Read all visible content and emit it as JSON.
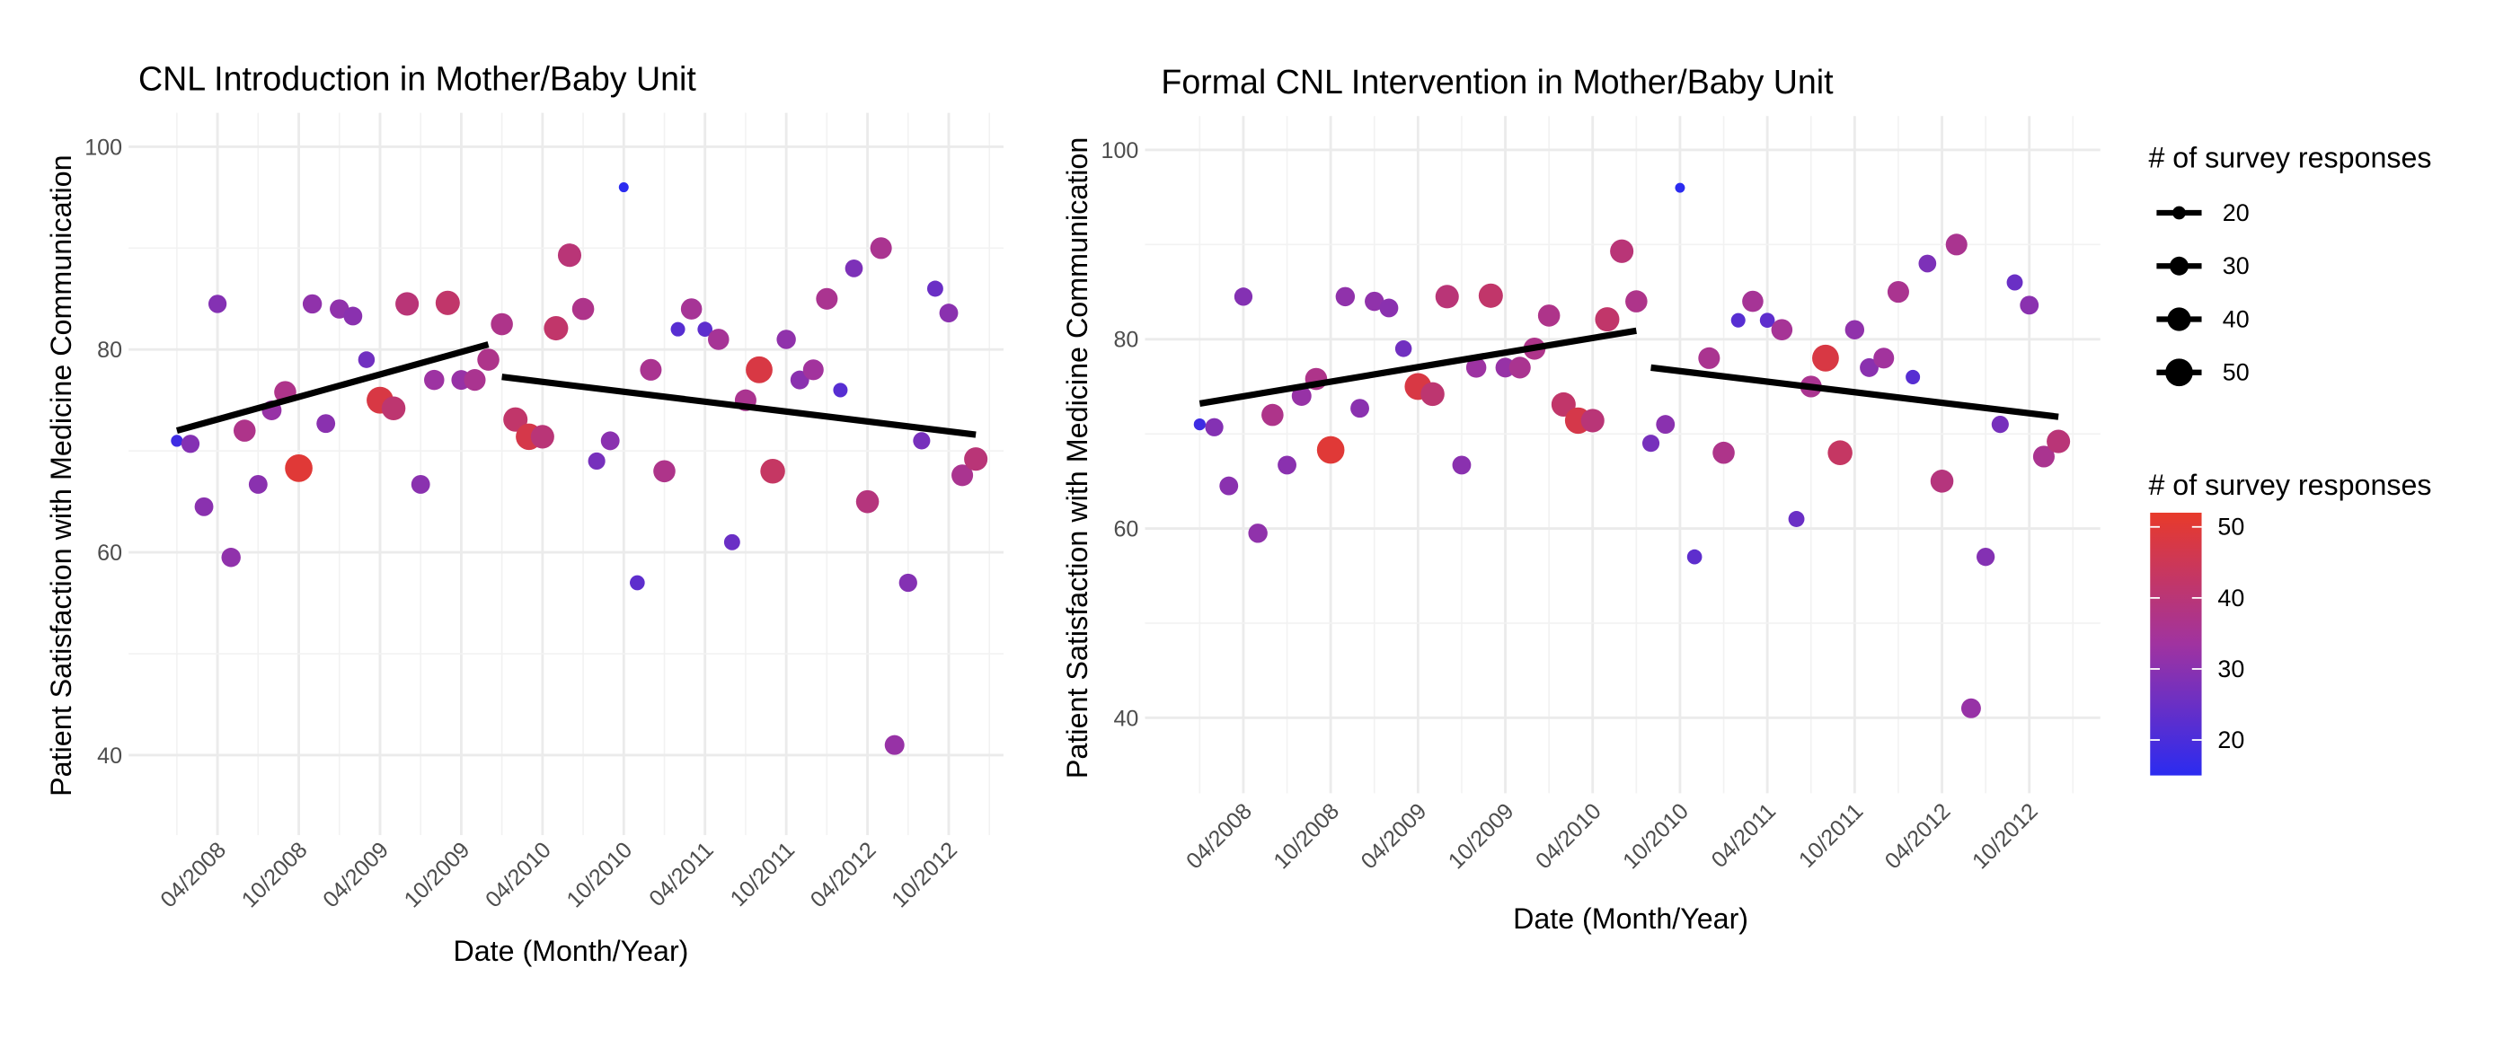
{
  "chart_data": [
    {
      "type": "scatter",
      "title": "CNL Introduction in Mother/Baby Unit",
      "xlabel": "Date (Month/Year)",
      "ylabel": "Patient Satisfaction with Medicine Communication",
      "x_ticks": [
        "04/2008",
        "10/2008",
        "04/2009",
        "10/2009",
        "04/2010",
        "10/2010",
        "04/2011",
        "10/2011",
        "04/2012",
        "10/2012"
      ],
      "y_ticks": [
        40,
        60,
        80,
        100
      ],
      "ylim": [
        33,
        103
      ],
      "grid": true,
      "points": [
        {
          "x": "01/2008",
          "y": 71,
          "n": 18
        },
        {
          "x": "02/2008",
          "y": 70.7,
          "n": 29
        },
        {
          "x": "03/2008",
          "y": 64.5,
          "n": 30
        },
        {
          "x": "04/2008",
          "y": 84.5,
          "n": 29
        },
        {
          "x": "05/2008",
          "y": 59.5,
          "n": 31
        },
        {
          "x": "06/2008",
          "y": 72,
          "n": 37
        },
        {
          "x": "07/2008",
          "y": 66.7,
          "n": 30
        },
        {
          "x": "08/2008",
          "y": 74,
          "n": 32
        },
        {
          "x": "09/2008",
          "y": 75.8,
          "n": 37
        },
        {
          "x": "10/2008",
          "y": 68.3,
          "n": 50
        },
        {
          "x": "11/2008",
          "y": 84.5,
          "n": 31
        },
        {
          "x": "12/2008",
          "y": 72.7,
          "n": 30
        },
        {
          "x": "01/2009",
          "y": 84,
          "n": 31
        },
        {
          "x": "02/2009",
          "y": 83.3,
          "n": 30
        },
        {
          "x": "03/2009",
          "y": 79,
          "n": 26
        },
        {
          "x": "04/2009",
          "y": 75,
          "n": 48
        },
        {
          "x": "05/2009",
          "y": 74.2,
          "n": 41
        },
        {
          "x": "06/2009",
          "y": 84.5,
          "n": 40
        },
        {
          "x": "07/2009",
          "y": 66.7,
          "n": 30
        },
        {
          "x": "08/2009",
          "y": 77,
          "n": 33
        },
        {
          "x": "09/2009",
          "y": 84.6,
          "n": 42
        },
        {
          "x": "10/2009",
          "y": 77,
          "n": 32
        },
        {
          "x": "11/2009",
          "y": 77,
          "n": 36
        },
        {
          "x": "12/2009",
          "y": 79,
          "n": 37
        },
        {
          "x": "01/2010",
          "y": 82.5,
          "n": 37
        },
        {
          "x": "02/2010",
          "y": 73.1,
          "n": 42
        },
        {
          "x": "03/2010",
          "y": 71.4,
          "n": 47
        },
        {
          "x": "04/2010",
          "y": 71.4,
          "n": 40
        },
        {
          "x": "05/2010",
          "y": 82.1,
          "n": 42
        },
        {
          "x": "06/2010",
          "y": 89.3,
          "n": 40
        },
        {
          "x": "07/2010",
          "y": 84,
          "n": 37
        },
        {
          "x": "08/2010",
          "y": 69,
          "n": 27
        },
        {
          "x": "09/2010",
          "y": 71,
          "n": 30
        },
        {
          "x": "10/2010",
          "y": 96,
          "n": 15
        },
        {
          "x": "11/2010",
          "y": 57,
          "n": 23
        },
        {
          "x": "12/2010",
          "y": 78,
          "n": 36
        },
        {
          "x": "01/2011",
          "y": 68,
          "n": 37
        },
        {
          "x": "02/2011",
          "y": 82,
          "n": 22
        },
        {
          "x": "03/2011",
          "y": 84,
          "n": 35
        },
        {
          "x": "04/2011",
          "y": 82,
          "n": 23
        },
        {
          "x": "05/2011",
          "y": 81,
          "n": 35
        },
        {
          "x": "06/2011",
          "y": 61,
          "n": 25
        },
        {
          "x": "07/2011",
          "y": 75,
          "n": 36
        },
        {
          "x": "08/2011",
          "y": 78,
          "n": 48
        },
        {
          "x": "09/2011",
          "y": 68,
          "n": 43
        },
        {
          "x": "10/2011",
          "y": 81,
          "n": 31
        },
        {
          "x": "11/2011",
          "y": 77,
          "n": 30
        },
        {
          "x": "12/2011",
          "y": 78,
          "n": 34
        },
        {
          "x": "01/2012",
          "y": 85,
          "n": 36
        },
        {
          "x": "02/2012",
          "y": 76,
          "n": 22
        },
        {
          "x": "03/2012",
          "y": 88,
          "n": 28
        },
        {
          "x": "04/2012",
          "y": 65,
          "n": 39
        },
        {
          "x": "05/2012",
          "y": 90,
          "n": 36
        },
        {
          "x": "06/2012",
          "y": 41,
          "n": 32
        },
        {
          "x": "07/2012",
          "y": 57,
          "n": 29
        },
        {
          "x": "08/2012",
          "y": 71,
          "n": 27
        },
        {
          "x": "09/2012",
          "y": 86,
          "n": 25
        },
        {
          "x": "10/2012",
          "y": 83.6,
          "n": 30
        },
        {
          "x": "11/2012",
          "y": 67.6,
          "n": 36
        },
        {
          "x": "12/2012",
          "y": 69.2,
          "n": 40
        }
      ],
      "trend_lines": [
        {
          "x_start": "01/2008",
          "y_start": 72,
          "x_end": "12/2009",
          "y_end": 80.5
        },
        {
          "x_start": "01/2010",
          "y_start": 77.3,
          "x_end": "12/2012",
          "y_end": 71.6
        }
      ]
    },
    {
      "type": "scatter",
      "title": "Formal CNL Intervention in Mother/Baby Unit",
      "xlabel": "Date (Month/Year)",
      "ylabel": "Patient Satisfaction with Medicine Communication",
      "x_ticks": [
        "04/2008",
        "10/2008",
        "04/2009",
        "10/2009",
        "04/2010",
        "10/2010",
        "04/2011",
        "10/2011",
        "04/2012",
        "10/2012"
      ],
      "y_ticks": [
        40,
        60,
        80,
        100
      ],
      "ylim": [
        33,
        103
      ],
      "grid": true,
      "points": [
        {
          "x": "01/2008",
          "y": 71,
          "n": 18
        },
        {
          "x": "02/2008",
          "y": 70.7,
          "n": 29
        },
        {
          "x": "03/2008",
          "y": 64.5,
          "n": 30
        },
        {
          "x": "04/2008",
          "y": 84.5,
          "n": 29
        },
        {
          "x": "05/2008",
          "y": 59.5,
          "n": 31
        },
        {
          "x": "06/2008",
          "y": 72,
          "n": 37
        },
        {
          "x": "07/2008",
          "y": 66.7,
          "n": 30
        },
        {
          "x": "08/2008",
          "y": 74,
          "n": 32
        },
        {
          "x": "09/2008",
          "y": 75.8,
          "n": 37
        },
        {
          "x": "10/2008",
          "y": 68.3,
          "n": 50
        },
        {
          "x": "11/2008",
          "y": 84.5,
          "n": 31
        },
        {
          "x": "12/2008",
          "y": 72.7,
          "n": 30
        },
        {
          "x": "01/2009",
          "y": 84,
          "n": 31
        },
        {
          "x": "02/2009",
          "y": 83.3,
          "n": 30
        },
        {
          "x": "03/2009",
          "y": 79,
          "n": 26
        },
        {
          "x": "04/2009",
          "y": 75,
          "n": 48
        },
        {
          "x": "05/2009",
          "y": 74.2,
          "n": 41
        },
        {
          "x": "06/2009",
          "y": 84.5,
          "n": 40
        },
        {
          "x": "07/2009",
          "y": 66.7,
          "n": 30
        },
        {
          "x": "08/2009",
          "y": 77,
          "n": 33
        },
        {
          "x": "09/2009",
          "y": 84.6,
          "n": 42
        },
        {
          "x": "10/2009",
          "y": 77,
          "n": 32
        },
        {
          "x": "11/2009",
          "y": 77,
          "n": 36
        },
        {
          "x": "12/2009",
          "y": 79,
          "n": 37
        },
        {
          "x": "01/2010",
          "y": 82.5,
          "n": 37
        },
        {
          "x": "02/2010",
          "y": 73.1,
          "n": 42
        },
        {
          "x": "03/2010",
          "y": 71.4,
          "n": 47
        },
        {
          "x": "04/2010",
          "y": 71.4,
          "n": 40
        },
        {
          "x": "05/2010",
          "y": 82.1,
          "n": 42
        },
        {
          "x": "06/2010",
          "y": 89.3,
          "n": 40
        },
        {
          "x": "07/2010",
          "y": 84,
          "n": 37
        },
        {
          "x": "08/2010",
          "y": 69,
          "n": 27
        },
        {
          "x": "09/2010",
          "y": 71,
          "n": 30
        },
        {
          "x": "10/2010",
          "y": 96,
          "n": 15
        },
        {
          "x": "11/2010",
          "y": 57,
          "n": 23
        },
        {
          "x": "12/2010",
          "y": 78,
          "n": 36
        },
        {
          "x": "01/2011",
          "y": 68,
          "n": 37
        },
        {
          "x": "02/2011",
          "y": 82,
          "n": 22
        },
        {
          "x": "03/2011",
          "y": 84,
          "n": 35
        },
        {
          "x": "04/2011",
          "y": 82,
          "n": 23
        },
        {
          "x": "05/2011",
          "y": 81,
          "n": 35
        },
        {
          "x": "06/2011",
          "y": 61,
          "n": 25
        },
        {
          "x": "07/2011",
          "y": 75,
          "n": 36
        },
        {
          "x": "08/2011",
          "y": 78,
          "n": 48
        },
        {
          "x": "09/2011",
          "y": 68,
          "n": 43
        },
        {
          "x": "10/2011",
          "y": 81,
          "n": 31
        },
        {
          "x": "11/2011",
          "y": 77,
          "n": 30
        },
        {
          "x": "12/2011",
          "y": 78,
          "n": 34
        },
        {
          "x": "01/2012",
          "y": 85,
          "n": 36
        },
        {
          "x": "02/2012",
          "y": 76,
          "n": 22
        },
        {
          "x": "03/2012",
          "y": 88,
          "n": 28
        },
        {
          "x": "04/2012",
          "y": 65,
          "n": 39
        },
        {
          "x": "05/2012",
          "y": 90,
          "n": 36
        },
        {
          "x": "06/2012",
          "y": 41,
          "n": 32
        },
        {
          "x": "07/2012",
          "y": 57,
          "n": 29
        },
        {
          "x": "08/2012",
          "y": 71,
          "n": 27
        },
        {
          "x": "09/2012",
          "y": 86,
          "n": 25
        },
        {
          "x": "10/2012",
          "y": 83.6,
          "n": 30
        },
        {
          "x": "11/2012",
          "y": 67.6,
          "n": 36
        },
        {
          "x": "12/2012",
          "y": 69.2,
          "n": 40
        }
      ],
      "trend_lines": [
        {
          "x_start": "01/2008",
          "y_start": 73.2,
          "x_end": "07/2010",
          "y_end": 80.9
        },
        {
          "x_start": "08/2010",
          "y_start": 77,
          "x_end": "12/2012",
          "y_end": 71.8
        }
      ]
    }
  ],
  "legend": {
    "size_title": "# of survey responses",
    "size_entries": [
      20,
      30,
      40,
      50
    ],
    "color_title": "# of survey responses",
    "color_ticks": [
      20,
      30,
      40,
      50
    ],
    "color_range": [
      15,
      52
    ],
    "color_low": "#2b2bf0",
    "color_mid": "#a033a0",
    "color_high": "#e83a2a"
  }
}
